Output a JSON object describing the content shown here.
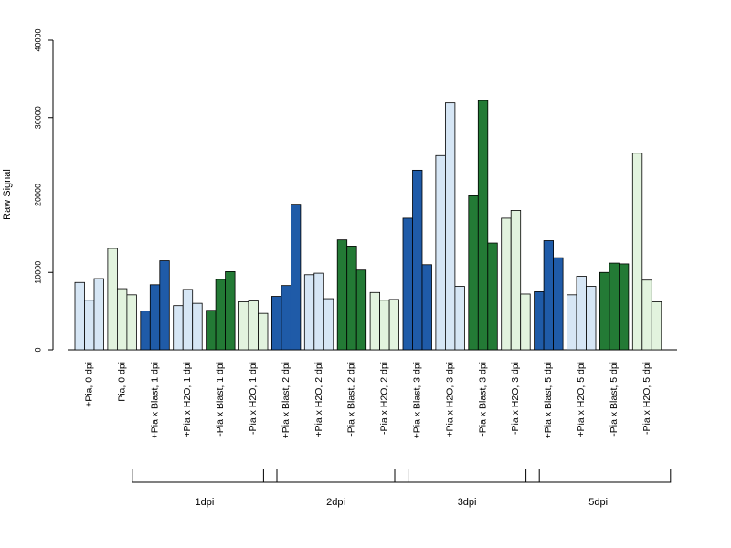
{
  "chart_data": {
    "type": "bar",
    "title": "",
    "xlabel": "",
    "ylabel": "Raw Signal",
    "ylim": [
      0,
      40000
    ],
    "yticks": [
      0,
      10000,
      20000,
      30000,
      40000
    ],
    "yticks_text": [
      "0",
      "10000",
      "20000",
      "30000",
      "40000"
    ],
    "grid": false,
    "legend": "none",
    "bars_per_category": 3,
    "categories": [
      "+Pia, 0 dpi",
      "-Pia, 0 dpi",
      "+Pia x Blast, 1 dpi",
      "+Pia x H2O, 1 dpi",
      "-Pia x Blast, 1 dpi",
      "-Pia x H2O, 1 dpi",
      "+Pia x Blast, 2 dpi",
      "+Pia x H2O, 2 dpi",
      "-Pia x Blast, 2 dpi",
      "-Pia x H2O, 2 dpi",
      "+Pia x Blast, 3 dpi",
      "+Pia x H2O, 3 dpi",
      "-Pia x Blast, 3 dpi",
      "-Pia x H2O, 3 dpi",
      "+Pia x Blast, 5 dpi",
      "+Pia x H2O, 5 dpi",
      "-Pia x Blast, 5 dpi",
      "-Pia x H2O, 5 dpi"
    ],
    "values": [
      [
        8700,
        6400,
        9200
      ],
      [
        13100,
        7900,
        7100
      ],
      [
        5000,
        8400,
        11500
      ],
      [
        5700,
        7800,
        6000
      ],
      [
        5100,
        9100,
        10100
      ],
      [
        6200,
        6300,
        4700
      ],
      [
        6900,
        8300,
        18800
      ],
      [
        9700,
        9900,
        6600
      ],
      [
        14200,
        13400,
        10300
      ],
      [
        7400,
        6400,
        6500
      ],
      [
        17000,
        23200,
        11000
      ],
      [
        25100,
        31900,
        8200
      ],
      [
        19900,
        32200,
        13800
      ],
      [
        17000,
        18000,
        7200
      ],
      [
        7500,
        14100,
        11900
      ],
      [
        7100,
        9500,
        8200
      ],
      [
        10000,
        11200,
        11100
      ],
      [
        25400,
        9000,
        6200
      ]
    ],
    "colors": [
      "#d6e6f5",
      "#e2f3de",
      "#1f5ba8",
      "#d6e6f5",
      "#237a35",
      "#e2f3de",
      "#1f5ba8",
      "#d6e6f5",
      "#237a35",
      "#e2f3de",
      "#1f5ba8",
      "#d6e6f5",
      "#237a35",
      "#e2f3de",
      "#1f5ba8",
      "#d6e6f5",
      "#237a35",
      "#e2f3de"
    ],
    "groups": [
      {
        "label": "1dpi",
        "from": 2,
        "to": 5
      },
      {
        "label": "2dpi",
        "from": 6,
        "to": 9
      },
      {
        "label": "3dpi",
        "from": 10,
        "to": 13
      },
      {
        "label": "5dpi",
        "from": 14,
        "to": 17
      }
    ]
  }
}
